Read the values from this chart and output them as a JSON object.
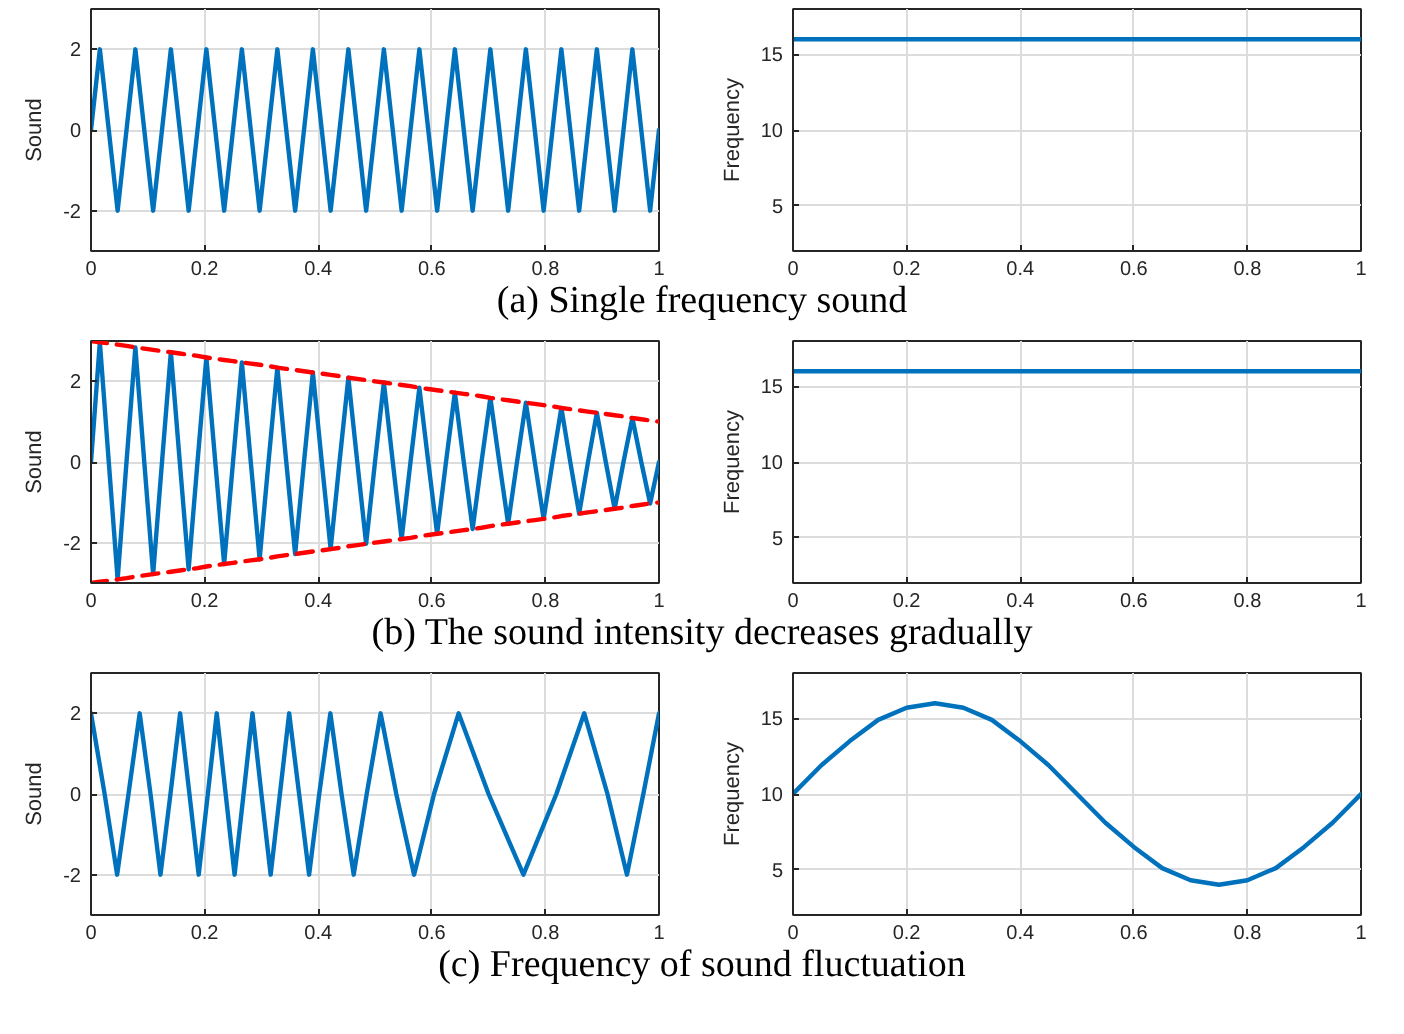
{
  "chart_data": [
    {
      "type": "line",
      "xlim": [
        0,
        1
      ],
      "xticks": [
        0,
        0.2,
        0.4,
        0.6,
        0.8,
        1
      ],
      "ylim": [
        -3,
        3
      ],
      "yticks": [
        -2,
        0,
        2
      ],
      "ylabel": "Sound",
      "grid": true,
      "annotations": [
        "(a) Single frequency sound"
      ],
      "x": [
        0,
        0.0156,
        0.0313,
        0.0469,
        0.0625,
        0.0781,
        0.0938,
        0.1094,
        0.125,
        0.1406,
        0.1563,
        0.1719,
        0.1875,
        0.2031,
        0.2188,
        0.2344,
        0.25,
        0.2656,
        0.2813,
        0.2969,
        0.3125,
        0.3281,
        0.3438,
        0.3594,
        0.375,
        0.3906,
        0.4063,
        0.4219,
        0.4375,
        0.4531,
        0.4688,
        0.4844,
        0.5,
        0.5156,
        0.5313,
        0.5469,
        0.5625,
        0.5781,
        0.5938,
        0.6094,
        0.625,
        0.6406,
        0.6563,
        0.6719,
        0.6875,
        0.7031,
        0.7188,
        0.7344,
        0.75,
        0.7656,
        0.7813,
        0.7969,
        0.8125,
        0.8281,
        0.8438,
        0.8594,
        0.875,
        0.8906,
        0.9063,
        0.9219,
        0.9375,
        0.9531,
        0.9688,
        0.9844,
        1
      ],
      "series": [
        {
          "color": "#0072bd",
          "values": [
            0,
            2,
            0,
            -2,
            0,
            2,
            0,
            -2,
            0,
            2,
            0,
            -2,
            0,
            2,
            0,
            -2,
            0,
            2,
            0,
            -2,
            0,
            2,
            0,
            -2,
            0,
            2,
            0,
            -2,
            0,
            2,
            0,
            -2,
            0,
            2,
            0,
            -2,
            0,
            2,
            0,
            -2,
            0,
            2,
            0,
            -2,
            0,
            2,
            0,
            -2,
            0,
            2,
            0,
            -2,
            0,
            2,
            0,
            -2,
            0,
            2,
            0,
            -2,
            0,
            2,
            0,
            -2,
            0
          ]
        }
      ]
    },
    {
      "type": "line",
      "xlim": [
        0,
        1
      ],
      "xticks": [
        0,
        0.2,
        0.4,
        0.6,
        0.8,
        1
      ],
      "ylim": [
        2,
        18
      ],
      "yticks": [
        5,
        10,
        15
      ],
      "ylabel": "Frequency",
      "grid": true,
      "x": [
        0,
        1
      ],
      "series": [
        {
          "color": "#0072bd",
          "values": [
            16,
            16
          ]
        }
      ]
    },
    {
      "type": "line",
      "xlim": [
        0,
        1
      ],
      "xticks": [
        0,
        0.2,
        0.4,
        0.6,
        0.8,
        1
      ],
      "ylim": [
        -3,
        3
      ],
      "yticks": [
        -2,
        0,
        2
      ],
      "ylabel": "Sound",
      "grid": true,
      "annotations": [
        "(b) The sound intensity decreases gradually"
      ],
      "x": [
        0,
        0.0156,
        0.0313,
        0.0469,
        0.0625,
        0.0781,
        0.0938,
        0.1094,
        0.125,
        0.1406,
        0.1563,
        0.1719,
        0.1875,
        0.2031,
        0.2188,
        0.2344,
        0.25,
        0.2656,
        0.2813,
        0.2969,
        0.3125,
        0.3281,
        0.3438,
        0.3594,
        0.375,
        0.3906,
        0.4063,
        0.4219,
        0.4375,
        0.4531,
        0.4688,
        0.4844,
        0.5,
        0.5156,
        0.5313,
        0.5469,
        0.5625,
        0.5781,
        0.5938,
        0.6094,
        0.625,
        0.6406,
        0.6563,
        0.6719,
        0.6875,
        0.7031,
        0.7188,
        0.7344,
        0.75,
        0.7656,
        0.7813,
        0.7969,
        0.8125,
        0.8281,
        0.8438,
        0.8594,
        0.875,
        0.8906,
        0.9063,
        0.9219,
        0.9375,
        0.9531,
        0.9688,
        0.9844,
        1
      ],
      "series": [
        {
          "color": "#0072bd",
          "values": [
            0,
            2.97,
            0,
            -2.91,
            0,
            2.84,
            0,
            -2.78,
            0,
            2.72,
            0,
            -2.66,
            0,
            2.59,
            0,
            -2.53,
            0,
            2.47,
            0,
            -2.41,
            0,
            2.34,
            0,
            -2.28,
            0,
            2.22,
            0,
            -2.16,
            0,
            2.09,
            0,
            -2.03,
            0,
            1.97,
            0,
            -1.91,
            0,
            1.84,
            0,
            -1.78,
            0,
            1.72,
            0,
            -1.66,
            0,
            1.59,
            0,
            -1.53,
            0,
            1.47,
            0,
            -1.41,
            0,
            1.34,
            0,
            -1.28,
            0,
            1.22,
            0,
            -1.16,
            0,
            1.09,
            0,
            -1.03,
            0
          ]
        },
        {
          "color": "#ff0000",
          "line_style": "dashed",
          "values": [
            3,
            2.97,
            2.94,
            2.91,
            2.88,
            2.84,
            2.81,
            2.78,
            2.75,
            2.72,
            2.69,
            2.66,
            2.63,
            2.59,
            2.56,
            2.53,
            2.5,
            2.47,
            2.44,
            2.41,
            2.38,
            2.34,
            2.31,
            2.28,
            2.25,
            2.22,
            2.19,
            2.16,
            2.13,
            2.09,
            2.06,
            2.03,
            2,
            1.97,
            1.94,
            1.91,
            1.88,
            1.84,
            1.81,
            1.78,
            1.75,
            1.72,
            1.69,
            1.66,
            1.63,
            1.59,
            1.56,
            1.53,
            1.5,
            1.47,
            1.44,
            1.41,
            1.38,
            1.34,
            1.31,
            1.28,
            1.25,
            1.22,
            1.19,
            1.16,
            1.13,
            1.09,
            1.06,
            1.03,
            1
          ]
        },
        {
          "color": "#ff0000",
          "line_style": "dashed",
          "values": [
            -3,
            -2.97,
            -2.94,
            -2.91,
            -2.88,
            -2.84,
            -2.81,
            -2.78,
            -2.75,
            -2.72,
            -2.69,
            -2.66,
            -2.63,
            -2.59,
            -2.56,
            -2.53,
            -2.5,
            -2.47,
            -2.44,
            -2.41,
            -2.38,
            -2.34,
            -2.31,
            -2.28,
            -2.25,
            -2.22,
            -2.19,
            -2.16,
            -2.13,
            -2.09,
            -2.06,
            -2.03,
            -2,
            -1.97,
            -1.94,
            -1.91,
            -1.88,
            -1.84,
            -1.81,
            -1.78,
            -1.75,
            -1.72,
            -1.69,
            -1.66,
            -1.63,
            -1.59,
            -1.56,
            -1.53,
            -1.5,
            -1.47,
            -1.44,
            -1.41,
            -1.38,
            -1.34,
            -1.31,
            -1.28,
            -1.25,
            -1.22,
            -1.19,
            -1.16,
            -1.13,
            -1.09,
            -1.06,
            -1.03,
            -1
          ]
        }
      ]
    },
    {
      "type": "line",
      "xlim": [
        0,
        1
      ],
      "xticks": [
        0,
        0.2,
        0.4,
        0.6,
        0.8,
        1
      ],
      "ylim": [
        2,
        18
      ],
      "yticks": [
        5,
        10,
        15
      ],
      "ylabel": "Frequency",
      "grid": true,
      "x": [
        0,
        1
      ],
      "series": [
        {
          "color": "#0072bd",
          "values": [
            16,
            16
          ]
        }
      ]
    },
    {
      "type": "line",
      "xlim": [
        0,
        1
      ],
      "xticks": [
        0,
        0.2,
        0.4,
        0.6,
        0.8,
        1
      ],
      "ylim": [
        -3,
        3
      ],
      "yticks": [
        -2,
        0,
        2
      ],
      "ylabel": "Sound",
      "grid": true,
      "annotations": [
        "(c) Frequency of sound fluctuation"
      ],
      "x": [
        0,
        0.024,
        0.046,
        0.066,
        0.0857,
        0.1048,
        0.1223,
        0.1399,
        0.1569,
        0.1733,
        0.1896,
        0.2057,
        0.2214,
        0.2371,
        0.2528,
        0.2686,
        0.2843,
        0.3,
        0.3163,
        0.3326,
        0.3489,
        0.3664,
        0.384,
        0.4018,
        0.4214,
        0.4411,
        0.4625,
        0.4854,
        0.5099,
        0.5375,
        0.5688,
        0.6039,
        0.6472,
        0.7,
        0.7613,
        0.8193,
        0.8684,
        0.9093,
        0.9436,
        0.9724,
        1
      ],
      "series": [
        {
          "color": "#0072bd",
          "values": [
            2,
            0,
            -2,
            0,
            2,
            0,
            -2,
            0,
            2,
            0,
            -2,
            0,
            2,
            0,
            -2,
            0,
            2,
            0,
            -2,
            0,
            2,
            0,
            -2,
            0,
            2,
            0,
            -2,
            0,
            2,
            0,
            -2,
            0,
            2,
            0,
            -2,
            0,
            2,
            0,
            -2,
            0,
            2
          ]
        }
      ]
    },
    {
      "type": "line",
      "xlim": [
        0,
        1
      ],
      "xticks": [
        0,
        0.2,
        0.4,
        0.6,
        0.8,
        1
      ],
      "ylim": [
        2,
        18
      ],
      "yticks": [
        5,
        10,
        15
      ],
      "ylabel": "Frequency",
      "grid": true,
      "x": [
        0,
        0.05,
        0.1,
        0.15,
        0.2,
        0.25,
        0.3,
        0.35,
        0.4,
        0.45,
        0.5,
        0.55,
        0.6,
        0.65,
        0.7,
        0.75,
        0.8,
        0.85,
        0.9,
        0.95,
        1
      ],
      "series": [
        {
          "color": "#0072bd",
          "values": [
            10,
            11.9,
            13.5,
            14.9,
            15.7,
            16,
            15.7,
            14.9,
            13.5,
            11.9,
            10,
            8.1,
            6.5,
            5.1,
            4.3,
            4,
            4.3,
            5.1,
            6.5,
            8.1,
            10
          ]
        }
      ]
    }
  ]
}
